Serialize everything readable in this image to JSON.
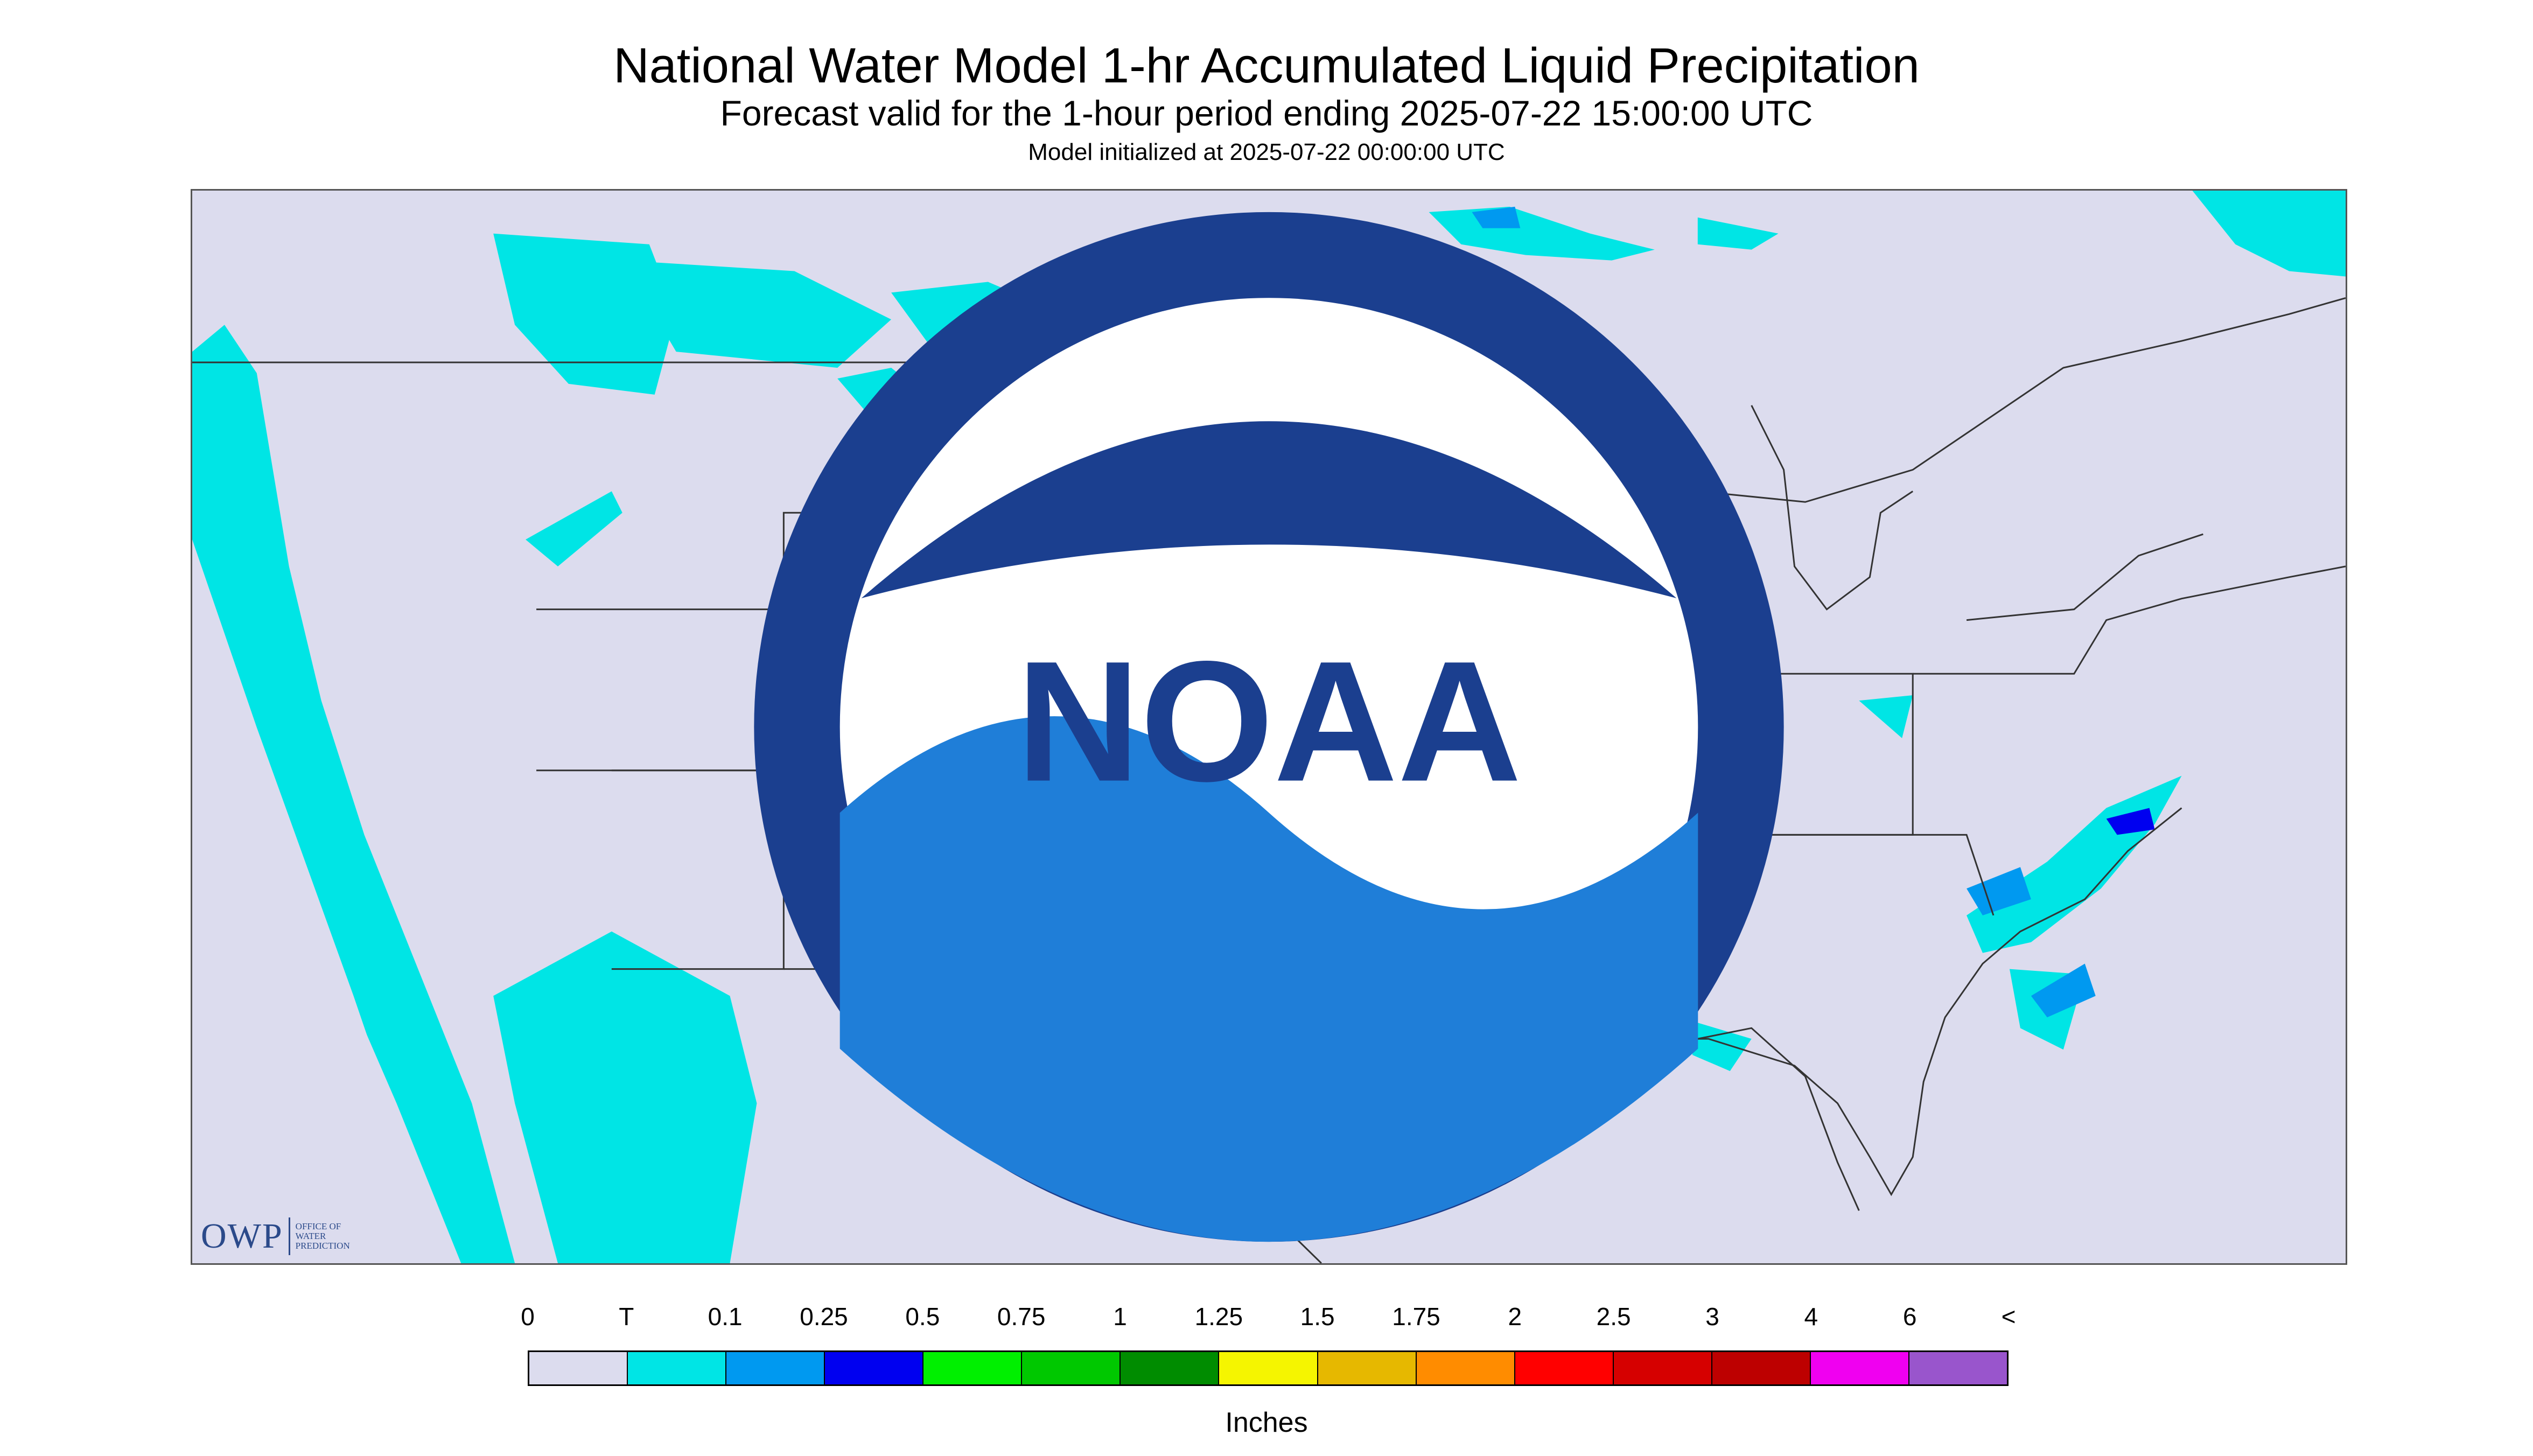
{
  "header": {
    "title": "National Water Model 1-hr Accumulated Liquid Precipitation",
    "subtitle": "Forecast valid for the 1-hour period ending 2025-07-22 15:00:00 UTC",
    "init": "Model initialized at 2025-07-22 00:00:00 UTC"
  },
  "logos": {
    "owp_abbrev": "OWP",
    "owp_line1": "Office of",
    "owp_line2": "Water",
    "owp_line3": "Prediction",
    "noaa": "NOAA"
  },
  "legend": {
    "labels": [
      "0",
      "T",
      "0.1",
      "0.25",
      "0.5",
      "0.75",
      "1",
      "1.25",
      "1.5",
      "1.75",
      "2",
      "2.5",
      "3",
      "4",
      "6",
      "<"
    ],
    "colors": [
      "#dcdcee",
      "#00e5e5",
      "#0099f0",
      "#0000f0",
      "#00f000",
      "#00c800",
      "#008c00",
      "#f5f500",
      "#e6b800",
      "#ff8c00",
      "#ff0000",
      "#d60000",
      "#bd0000",
      "#f000f0",
      "#9955cc"
    ],
    "units": "Inches"
  },
  "map_colors": {
    "background": "#dcdcee",
    "trace": "#00e5e5",
    "light": "#0099f0",
    "medium": "#0000f0",
    "heavy": "#00c800",
    "heaviest": "#f5f500",
    "boundaries": "#333333"
  }
}
